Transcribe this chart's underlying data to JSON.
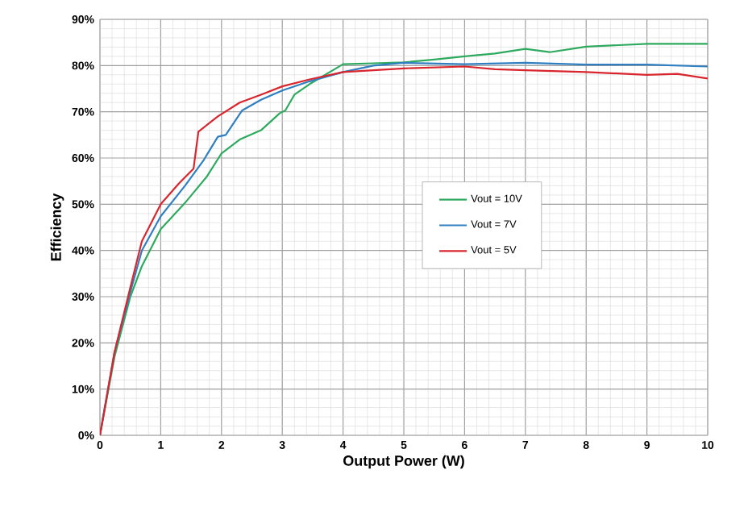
{
  "chart_data": {
    "type": "line",
    "xlabel": "Output Power (W)",
    "ylabel": "Efficiency",
    "xlim": [
      0,
      10
    ],
    "ylim": [
      0,
      90
    ],
    "xticks": [
      0,
      1,
      2,
      3,
      4,
      5,
      6,
      7,
      8,
      9,
      10
    ],
    "yticks": [
      {
        "value": 0,
        "label": "0%"
      },
      {
        "value": 10,
        "label": "10%"
      },
      {
        "value": 20,
        "label": "20%"
      },
      {
        "value": 30,
        "label": "30%"
      },
      {
        "value": 40,
        "label": "40%"
      },
      {
        "value": 50,
        "label": "50%"
      },
      {
        "value": 60,
        "label": "60%"
      },
      {
        "value": 70,
        "label": "70%"
      },
      {
        "value": 80,
        "label": "80%"
      },
      {
        "value": 90,
        "label": "90%"
      }
    ],
    "grid": true,
    "legend": "right",
    "marker": "none",
    "line_style": "solid",
    "series": [
      {
        "name": "Vout = 10V",
        "color": "#2eaa5e",
        "x": [
          0,
          0.24,
          0.5,
          0.69,
          1.0,
          1.4,
          1.76,
          2.0,
          2.3,
          2.65,
          2.96,
          3.05,
          3.2,
          3.45,
          4,
          4.5,
          5,
          5.5,
          6,
          6.5,
          7,
          7.4,
          8,
          9,
          10
        ],
        "values": [
          0,
          17,
          30,
          36.6,
          44.6,
          50.3,
          56,
          61,
          64,
          66,
          69.7,
          70.3,
          73.7,
          76,
          80.3,
          80.5,
          80.7,
          81.3,
          82,
          82.6,
          83.6,
          82.9,
          84.1,
          84.7,
          84.7
        ]
      },
      {
        "name": "Vout = 7V",
        "color": "#2f7fc1",
        "x": [
          0,
          0.24,
          0.5,
          0.69,
          1.0,
          1.4,
          1.7,
          1.94,
          2.07,
          2.34,
          2.65,
          3.0,
          3.45,
          4,
          4.5,
          5,
          6,
          7,
          8,
          9,
          10
        ],
        "values": [
          0,
          18,
          31,
          40,
          47.4,
          54,
          59.4,
          64.6,
          65,
          70.3,
          72.6,
          74.6,
          76.6,
          78.6,
          80,
          80.6,
          80.3,
          80.6,
          80.2,
          80.2,
          79.8
        ]
      },
      {
        "name": "Vout = 5V",
        "color": "#d9262e",
        "x": [
          0,
          0.24,
          0.5,
          0.69,
          1.0,
          1.3,
          1.54,
          1.62,
          1.94,
          2.3,
          2.65,
          3.0,
          3.45,
          4,
          5,
          6,
          6.5,
          7,
          8,
          9,
          9.5,
          10
        ],
        "values": [
          0,
          18,
          32,
          42,
          50,
          54.5,
          57.7,
          65.7,
          69,
          72,
          73.7,
          75.5,
          77,
          78.6,
          79.4,
          79.8,
          79.2,
          79,
          78.6,
          78,
          78.2,
          77.2
        ]
      }
    ]
  }
}
